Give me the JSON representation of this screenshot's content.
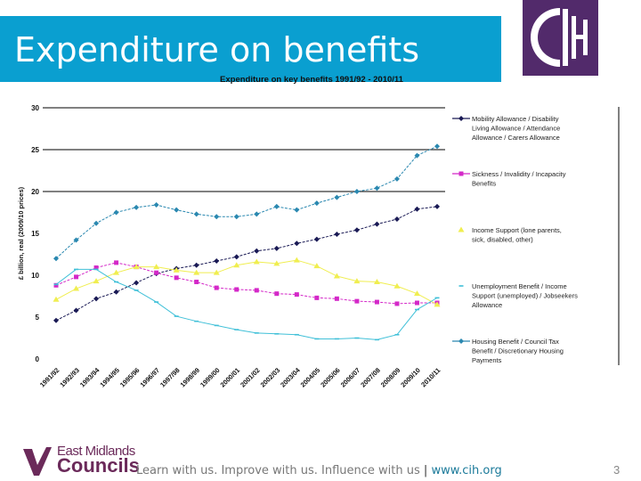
{
  "slide": {
    "title": "Expenditure on benefits",
    "logo_text": "CIH",
    "footer": {
      "org_line1": "East Midlands",
      "org_line2": "Councils",
      "tagline": "Learn with us. Improve with us. Influence with us",
      "separator": "|",
      "url": "www.cih.org",
      "page_number": "3"
    },
    "colors": {
      "banner": "#0a9fd0",
      "logo": "#522a6b",
      "footer_logo": "#6b2a5a"
    }
  },
  "chart_data": {
    "type": "line",
    "title": "Expenditure on key benefits 1991/92 - 2010/11",
    "xlabel": "",
    "ylabel": "£ billion, real (2009/10 prices)",
    "ylim": [
      0,
      30
    ],
    "yticks": [
      0,
      5,
      10,
      15,
      20,
      25,
      30
    ],
    "grid": "horizontal",
    "legend": "right",
    "categories": [
      "1991/92",
      "1992/93",
      "1993/94",
      "1994/95",
      "1995/96",
      "1996/97",
      "1997/98",
      "1998/99",
      "1999/00",
      "2000/01",
      "2001/02",
      "2002/03",
      "2003/04",
      "2004/05",
      "2005/06",
      "2006/07",
      "2007/08",
      "2008/09",
      "2009/10",
      "2010/11"
    ],
    "series": [
      {
        "name": "Mobility Allowance / Disability Living Allowance / Attendance Allowance / Carers Allowance",
        "color": "#1a1a55",
        "marker": "diamond",
        "values": [
          4.6,
          5.8,
          7.2,
          8.0,
          9.1,
          10.2,
          10.8,
          11.2,
          11.7,
          12.2,
          12.9,
          13.2,
          13.8,
          14.3,
          14.9,
          15.4,
          16.1,
          16.7,
          17.9,
          18.2
        ]
      },
      {
        "name": "Sickness / Invalidity / Incapacity Benefits",
        "color": "#d428c8",
        "marker": "square",
        "values": [
          8.8,
          9.8,
          10.9,
          11.5,
          11.0,
          10.3,
          9.7,
          9.2,
          8.5,
          8.3,
          8.2,
          7.8,
          7.7,
          7.3,
          7.2,
          6.9,
          6.8,
          6.6,
          6.7,
          6.7
        ]
      },
      {
        "name": "Income Support (lone parents, sick, disabled, other)",
        "color": "#f0ee50",
        "marker": "triangle",
        "values": [
          7.1,
          8.4,
          9.3,
          10.3,
          11.0,
          11.0,
          10.6,
          10.3,
          10.3,
          11.2,
          11.6,
          11.4,
          11.8,
          11.1,
          9.9,
          9.3,
          9.2,
          8.7,
          7.8,
          6.5
        ]
      },
      {
        "name": "Unemployment Benefit / Income Support (unemployed) / Jobseekers Allowance",
        "color": "#40c0d8",
        "marker": "dash",
        "values": [
          8.9,
          10.7,
          10.7,
          9.2,
          8.2,
          6.8,
          5.1,
          4.5,
          4.0,
          3.5,
          3.1,
          3.0,
          2.9,
          2.4,
          2.4,
          2.5,
          2.3,
          2.9,
          5.9,
          7.3
        ]
      },
      {
        "name": "Housing Benefit / Council Tax Benefit / Discretionary Housing Payments",
        "color": "#2a88b0",
        "marker": "diamond",
        "values": [
          12.0,
          14.2,
          16.2,
          17.5,
          18.1,
          18.4,
          17.8,
          17.3,
          17.0,
          17.0,
          17.3,
          18.2,
          17.8,
          18.6,
          19.3,
          20.0,
          20.4,
          21.5,
          24.3,
          25.4
        ]
      }
    ]
  }
}
